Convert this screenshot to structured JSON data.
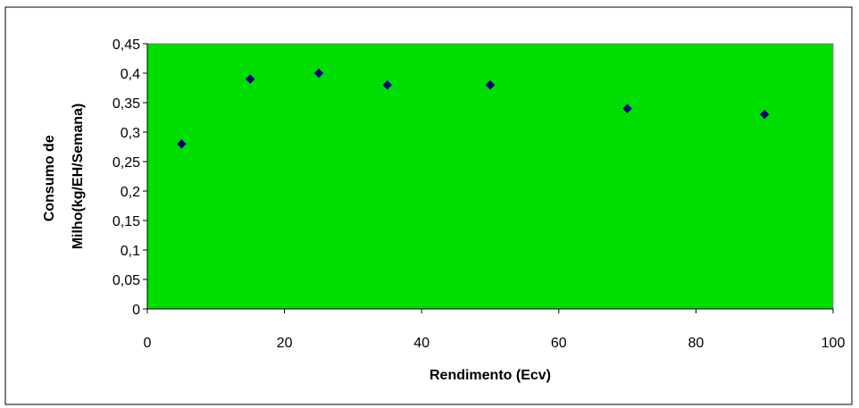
{
  "chart_data": {
    "type": "scatter",
    "xlabel": "Rendimento (Ecv)",
    "ylabel_lines": [
      "Consumo de",
      "Milho(kg/EH/Semana)"
    ],
    "xlim": [
      0,
      100
    ],
    "ylim": [
      0,
      0.45
    ],
    "x_ticks": [
      0,
      20,
      40,
      60,
      80,
      100
    ],
    "y_ticks": [
      0,
      0.05,
      0.1,
      0.15,
      0.2,
      0.25,
      0.3,
      0.35,
      0.4,
      0.45
    ],
    "x_tick_labels": [
      "0",
      "20",
      "40",
      "60",
      "80",
      "100"
    ],
    "y_tick_labels": [
      "0",
      "0,05",
      "0,1",
      "0,15",
      "0,2",
      "0,25",
      "0,3",
      "0,35",
      "0,4",
      "0,45"
    ],
    "grid": false,
    "plot_background": "#00dd00",
    "marker_color": "#000080",
    "marker_shape": "diamond",
    "series": [
      {
        "x": [
          5,
          15,
          25,
          35,
          50,
          70,
          90
        ],
        "y": [
          0.28,
          0.39,
          0.4,
          0.38,
          0.38,
          0.34,
          0.33
        ]
      }
    ]
  }
}
